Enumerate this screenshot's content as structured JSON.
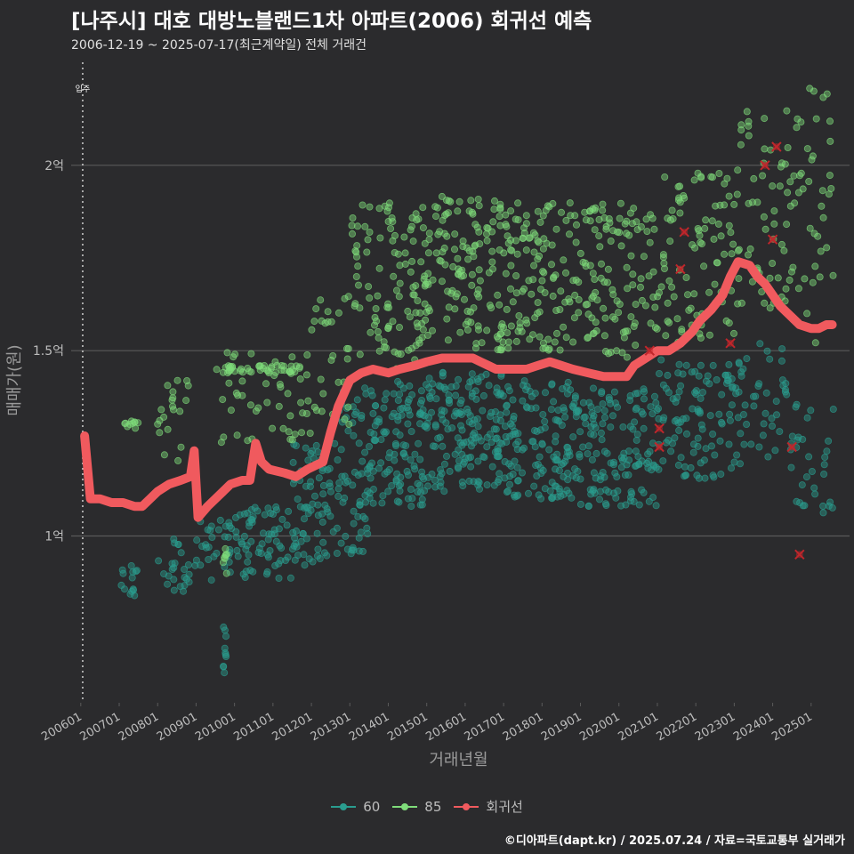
{
  "title": "[나주시] 대호 대방노블랜드1차 아파트(2006) 회귀선 예측",
  "subtitle": "2006-12-19 ~ 2025-07-17(최근계약일) 전체 거래건",
  "caption": "©디아파트(dapt.kr) / 2025.07.24 / 자료=국토교통부 실거래가",
  "colors": {
    "background": "#2b2b2d",
    "grid": "#5a5a5a",
    "series_60": "#2a9d8f",
    "series_85": "#7fdc7a",
    "regression": "#f05a5e",
    "marker_x": "#c0262b",
    "axis_text": "#bdbdbd"
  },
  "legend": {
    "items": [
      {
        "label": "60",
        "color": "#2a9d8f"
      },
      {
        "label": "85",
        "color": "#7fdc7a"
      },
      {
        "label": "회귀선",
        "color": "#f05a5e"
      }
    ]
  },
  "chart_data": {
    "type": "scatter",
    "xlabel": "거래년월",
    "ylabel": "매매가(원)",
    "x_ticks": [
      "200601",
      "200701",
      "200801",
      "200901",
      "201001",
      "201101",
      "201201",
      "201301",
      "201401",
      "201501",
      "201601",
      "201701",
      "201801",
      "201901",
      "202001",
      "202101",
      "202201",
      "202301",
      "202401",
      "202501"
    ],
    "y_ticks": [
      {
        "value": 100000000,
        "label": "1억"
      },
      {
        "value": 150000000,
        "label": "1.5억"
      },
      {
        "value": 200000000,
        "label": "2억"
      }
    ],
    "xlim": [
      2005.75,
      2026.0
    ],
    "ylim": [
      55000000,
      229000000
    ],
    "grid": "horizontal",
    "legend_position": "bottom",
    "annotation": {
      "label": "입주",
      "x": 2006.05
    },
    "series": [
      {
        "name": "60",
        "color": "#2a9d8f",
        "bands": [
          {
            "x": [
              2007.0,
              2007.5
            ],
            "y": [
              82000000,
              92000000
            ],
            "n": 14
          },
          {
            "x": [
              2008.0,
              2009.0
            ],
            "y": [
              85000000,
              100000000
            ],
            "n": 25
          },
          {
            "x": [
              2009.0,
              2010.3
            ],
            "y": [
              88000000,
              105000000
            ],
            "n": 35
          },
          {
            "x": [
              2009.7,
              2009.8
            ],
            "y": [
              63000000,
              77000000
            ],
            "n": 10
          },
          {
            "x": [
              2010.0,
              2011.5
            ],
            "y": [
              88000000,
              108000000
            ],
            "n": 60
          },
          {
            "x": [
              2011.5,
              2012.5
            ],
            "y": [
              92000000,
              125000000
            ],
            "n": 70
          },
          {
            "x": [
              2012.5,
              2013.5
            ],
            "y": [
              95000000,
              140000000
            ],
            "n": 70
          },
          {
            "x": [
              2013.5,
              2015.0
            ],
            "y": [
              108000000,
              142000000
            ],
            "n": 120
          },
          {
            "x": [
              2015.0,
              2017.0
            ],
            "y": [
              112000000,
              145000000
            ],
            "n": 160
          },
          {
            "x": [
              2017.0,
              2019.0
            ],
            "y": [
              110000000,
              142000000
            ],
            "n": 150
          },
          {
            "x": [
              2019.0,
              2021.0
            ],
            "y": [
              108000000,
              140000000
            ],
            "n": 130
          },
          {
            "x": [
              2021.0,
              2023.0
            ],
            "y": [
              115000000,
              148000000
            ],
            "n": 100
          },
          {
            "x": [
              2023.0,
              2024.5
            ],
            "y": [
              115000000,
              152000000
            ],
            "n": 50
          },
          {
            "x": [
              2024.5,
              2025.6
            ],
            "y": [
              105000000,
              140000000
            ],
            "n": 30
          }
        ]
      },
      {
        "name": "85",
        "color": "#7fdc7a",
        "bands": [
          {
            "x": [
              2007.1,
              2007.5
            ],
            "y": [
              129000000,
              131000000
            ],
            "n": 10
          },
          {
            "x": [
              2008.0,
              2009.0
            ],
            "y": [
              120000000,
              142000000
            ],
            "n": 20
          },
          {
            "x": [
              2009.7,
              2009.8
            ],
            "y": [
              88000000,
              97000000
            ],
            "n": 8
          },
          {
            "x": [
              2009.7,
              2011.8
            ],
            "y": [
              144000000,
              146000000
            ],
            "n": 40
          },
          {
            "x": [
              2009.5,
              2012.0
            ],
            "y": [
              125000000,
              150000000
            ],
            "n": 50
          },
          {
            "x": [
              2012.0,
              2013.0
            ],
            "y": [
              130000000,
              165000000
            ],
            "n": 30
          },
          {
            "x": [
              2013.0,
              2015.0
            ],
            "y": [
              145000000,
              190000000
            ],
            "n": 110
          },
          {
            "x": [
              2015.0,
              2017.0
            ],
            "y": [
              150000000,
              192000000
            ],
            "n": 130
          },
          {
            "x": [
              2017.0,
              2019.0
            ],
            "y": [
              150000000,
              190000000
            ],
            "n": 120
          },
          {
            "x": [
              2019.0,
              2021.0
            ],
            "y": [
              148000000,
              190000000
            ],
            "n": 110
          },
          {
            "x": [
              2021.0,
              2023.0
            ],
            "y": [
              152000000,
              198000000
            ],
            "n": 90
          },
          {
            "x": [
              2023.0,
              2024.5
            ],
            "y": [
              160000000,
              215000000
            ],
            "n": 60
          },
          {
            "x": [
              2024.5,
              2025.6
            ],
            "y": [
              150000000,
              222000000
            ],
            "n": 40
          }
        ]
      },
      {
        "name": "회귀선",
        "color": "#f05a5e",
        "x": [
          2006.1,
          2006.25,
          2006.5,
          2006.8,
          2007.1,
          2007.4,
          2007.6,
          2007.8,
          2008.0,
          2008.3,
          2008.6,
          2008.85,
          2008.95,
          2009.05,
          2009.3,
          2009.6,
          2009.9,
          2010.2,
          2010.4,
          2010.55,
          2010.7,
          2010.9,
          2011.3,
          2011.6,
          2011.9,
          2012.3,
          2012.5,
          2012.7,
          2013.0,
          2013.3,
          2013.6,
          2014.0,
          2014.3,
          2014.7,
          2015.0,
          2015.4,
          2015.8,
          2016.2,
          2016.4,
          2016.6,
          2016.8,
          2017.2,
          2017.6,
          2017.9,
          2018.2,
          2018.5,
          2018.8,
          2019.2,
          2019.6,
          2019.9,
          2020.2,
          2020.4,
          2020.7,
          2021.0,
          2021.3,
          2021.6,
          2021.9,
          2022.1,
          2022.4,
          2022.7,
          2022.9,
          2023.1,
          2023.4,
          2023.6,
          2023.8,
          2024.0,
          2024.2,
          2024.5,
          2024.7,
          2025.0,
          2025.2,
          2025.4,
          2025.55
        ],
        "y": [
          127000000,
          110000000,
          110000000,
          109000000,
          109000000,
          108000000,
          108000000,
          110000000,
          112000000,
          114000000,
          115000000,
          116000000,
          123000000,
          105000000,
          108000000,
          111000000,
          114000000,
          115000000,
          115000000,
          125000000,
          120000000,
          118000000,
          117000000,
          116000000,
          118000000,
          120000000,
          128000000,
          135000000,
          142000000,
          144000000,
          145000000,
          144000000,
          145000000,
          146000000,
          147000000,
          148000000,
          148000000,
          148000000,
          147000000,
          146000000,
          145000000,
          145000000,
          145000000,
          146000000,
          147000000,
          146000000,
          145000000,
          144000000,
          143000000,
          143000000,
          143000000,
          146000000,
          148000000,
          150000000,
          150000000,
          152000000,
          155000000,
          158000000,
          161000000,
          165000000,
          170000000,
          174000000,
          173000000,
          170000000,
          168000000,
          165000000,
          162000000,
          159000000,
          157000000,
          156000000,
          156000000,
          157000000,
          157000000
        ]
      }
    ],
    "outlier_markers": [
      {
        "x": 2020.8,
        "y": 150000000
      },
      {
        "x": 2021.05,
        "y": 129000000
      },
      {
        "x": 2021.05,
        "y": 124000000
      },
      {
        "x": 2021.7,
        "y": 182000000
      },
      {
        "x": 2021.6,
        "y": 172000000
      },
      {
        "x": 2022.9,
        "y": 152000000
      },
      {
        "x": 2023.8,
        "y": 200000000
      },
      {
        "x": 2024.1,
        "y": 205000000
      },
      {
        "x": 2024.0,
        "y": 180000000
      },
      {
        "x": 2024.5,
        "y": 124000000
      },
      {
        "x": 2024.7,
        "y": 95000000
      }
    ]
  }
}
